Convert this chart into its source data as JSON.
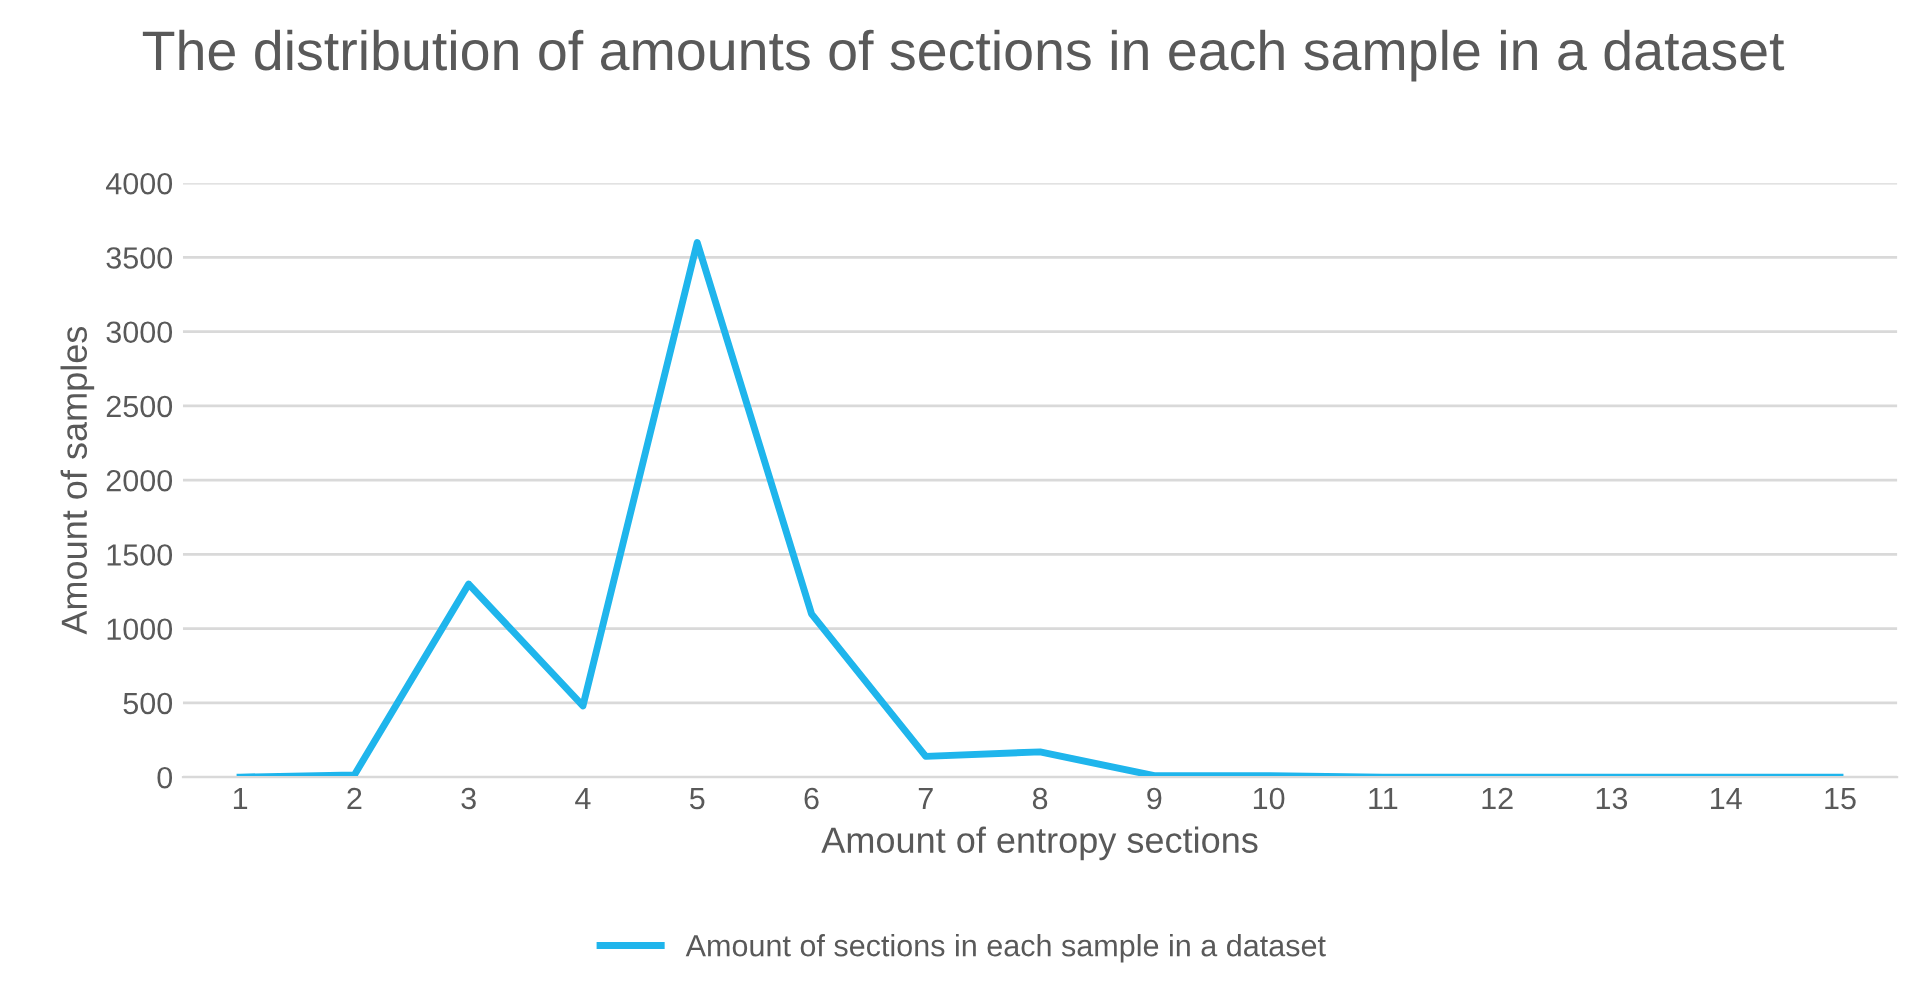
{
  "chart_data": {
    "type": "line",
    "title": "The distribution of amounts of sections in each sample in a dataset",
    "xlabel": "Amount of entropy sections",
    "ylabel": "Amount of samples",
    "categories": [
      "1",
      "2",
      "3",
      "4",
      "5",
      "6",
      "7",
      "8",
      "9",
      "10",
      "11",
      "12",
      "13",
      "14",
      "15"
    ],
    "series": [
      {
        "name": "Amount of sections in each sample in a dataset",
        "color": "#1fb5ec",
        "values": [
          0,
          15,
          1300,
          480,
          3600,
          1100,
          140,
          170,
          10,
          10,
          0,
          0,
          0,
          0,
          0
        ]
      }
    ],
    "ylim": [
      0,
      4000
    ],
    "yticks": [
      0,
      500,
      1000,
      1500,
      2000,
      2500,
      3000,
      3500,
      4000
    ],
    "grid": "y",
    "legend": "bottom",
    "marker": "none",
    "line_style": "solid"
  }
}
